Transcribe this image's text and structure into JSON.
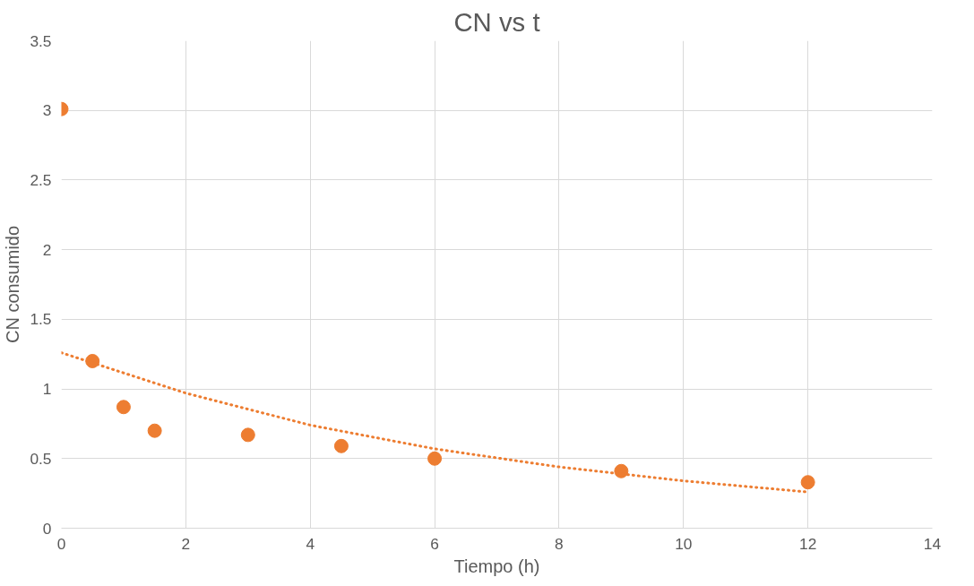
{
  "chart_data": {
    "type": "scatter",
    "title": "CN vs t",
    "xlabel": "Tiempo (h)",
    "ylabel": "CN consumido",
    "xlim": [
      0,
      14
    ],
    "xticks": [
      0,
      2,
      4,
      6,
      8,
      10,
      12,
      14
    ],
    "ylim": [
      0,
      3.5
    ],
    "yticks": [
      0,
      0.5,
      1,
      1.5,
      2,
      2.5,
      3,
      3.5
    ],
    "grid": true,
    "marker": "circle",
    "series": [
      {
        "color": "#ed7d31",
        "x": [
          0,
          0.5,
          1,
          1.5,
          3,
          4.5,
          6,
          9,
          12
        ],
        "values": [
          3.01,
          1.2,
          0.87,
          0.7,
          0.67,
          0.59,
          0.5,
          0.41,
          0.33
        ]
      },
      {
        "type": "line",
        "color": "#ed7d31",
        "line_style": "dotted",
        "marker": "none",
        "x": [
          0,
          2,
          4,
          6,
          8,
          10,
          12
        ],
        "values": [
          1.26,
          0.97,
          0.74,
          0.57,
          0.44,
          0.34,
          0.26
        ]
      }
    ]
  }
}
